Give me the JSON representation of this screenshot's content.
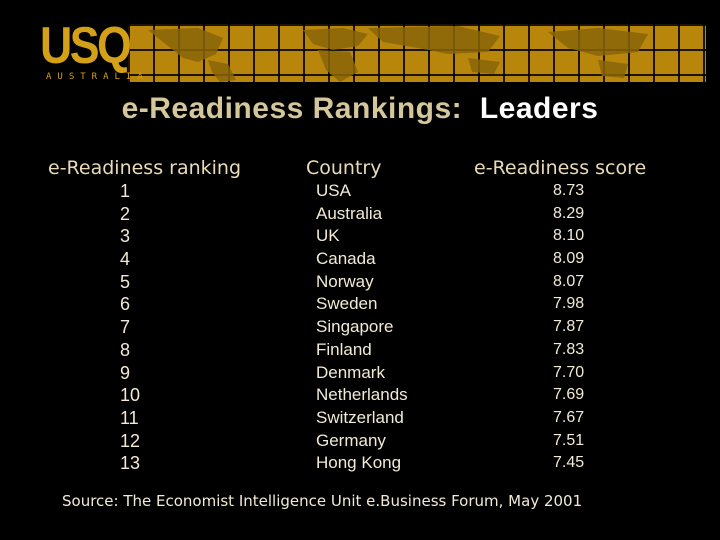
{
  "logo": {
    "text": "USQ",
    "subtext": "AUSTRALIA"
  },
  "title": {
    "lead": "e-Readiness Rankings:",
    "trail": "Leaders"
  },
  "table": {
    "headers": {
      "rank": "e-Readiness ranking",
      "country": "Country",
      "score": "e-Readiness score"
    },
    "rows": [
      {
        "rank": "1",
        "country": "USA",
        "score": "8.73"
      },
      {
        "rank": "2",
        "country": "Australia",
        "score": "8.29"
      },
      {
        "rank": "3",
        "country": "UK",
        "score": "8.10"
      },
      {
        "rank": "4",
        "country": "Canada",
        "score": "8.09"
      },
      {
        "rank": "5",
        "country": "Norway",
        "score": "8.07"
      },
      {
        "rank": "6",
        "country": "Sweden",
        "score": "7.98"
      },
      {
        "rank": "7",
        "country": "Singapore",
        "score": "7.87"
      },
      {
        "rank": "8",
        "country": "Finland",
        "score": "7.83"
      },
      {
        "rank": "9",
        "country": "Denmark",
        "score": "7.70"
      },
      {
        "rank": "10",
        "country": "Netherlands",
        "score": "7.69"
      },
      {
        "rank": "11",
        "country": "Switzerland",
        "score": "7.67"
      },
      {
        "rank": "12",
        "country": "Germany",
        "score": "7.51"
      },
      {
        "rank": "13",
        "country": "Hong Kong",
        "score": "7.45"
      }
    ]
  },
  "source": "Source:  The Economist Intelligence Unit e.Business Forum, May 2001",
  "colors": {
    "background": "#000000",
    "gold": "#d4a017",
    "map": "#b8860b",
    "text": "#f2ead6"
  }
}
